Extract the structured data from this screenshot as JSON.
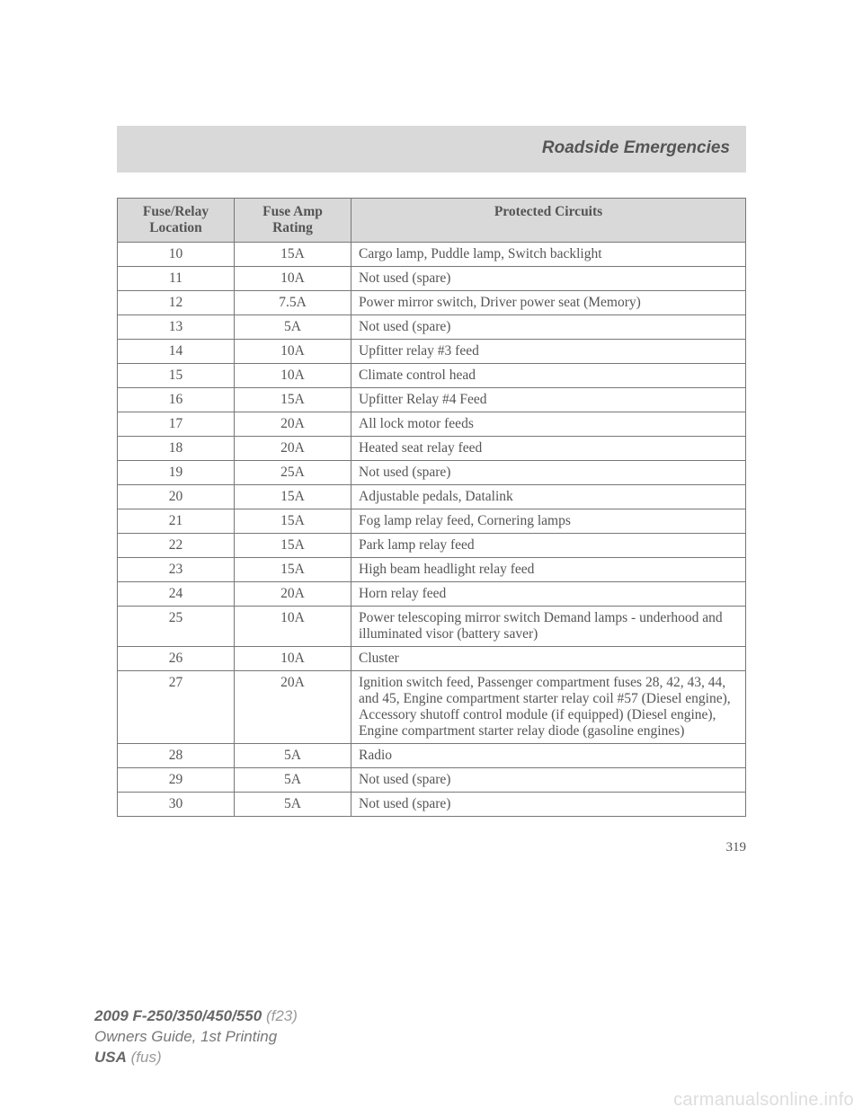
{
  "header": {
    "title": "Roadside Emergencies"
  },
  "table": {
    "columns": [
      "Fuse/Relay\nLocation",
      "Fuse Amp\nRating",
      "Protected Circuits"
    ],
    "rows": [
      [
        "10",
        "15A",
        "Cargo lamp, Puddle lamp, Switch backlight"
      ],
      [
        "11",
        "10A",
        "Not used (spare)"
      ],
      [
        "12",
        "7.5A",
        "Power mirror switch, Driver power seat (Memory)"
      ],
      [
        "13",
        "5A",
        "Not used (spare)"
      ],
      [
        "14",
        "10A",
        "Upfitter relay #3 feed"
      ],
      [
        "15",
        "10A",
        "Climate control head"
      ],
      [
        "16",
        "15A",
        "Upfitter Relay #4 Feed"
      ],
      [
        "17",
        "20A",
        "All lock motor feeds"
      ],
      [
        "18",
        "20A",
        "Heated seat relay feed"
      ],
      [
        "19",
        "25A",
        "Not used (spare)"
      ],
      [
        "20",
        "15A",
        "Adjustable pedals, Datalink"
      ],
      [
        "21",
        "15A",
        "Fog lamp relay feed, Cornering lamps"
      ],
      [
        "22",
        "15A",
        "Park lamp relay feed"
      ],
      [
        "23",
        "15A",
        "High beam headlight relay feed"
      ],
      [
        "24",
        "20A",
        "Horn relay feed"
      ],
      [
        "25",
        "10A",
        "Power telescoping mirror switch Demand lamps - underhood and illuminated visor (battery saver)"
      ],
      [
        "26",
        "10A",
        "Cluster"
      ],
      [
        "27",
        "20A",
        "Ignition switch feed, Passenger compartment fuses 28, 42, 43, 44, and 45, Engine compartment starter relay coil #57 (Diesel engine), Accessory shutoff control module (if equipped) (Diesel engine), Engine compartment starter relay diode (gasoline engines)"
      ],
      [
        "28",
        "5A",
        "Radio"
      ],
      [
        "29",
        "5A",
        "Not used (spare)"
      ],
      [
        "30",
        "5A",
        "Not used (spare)"
      ]
    ],
    "header_bg": "#d9d9d9",
    "border_color": "#777777",
    "text_color": "#555555",
    "font_size_pt": 11
  },
  "page": {
    "number": "319"
  },
  "footer": {
    "model": "2009 F-250/350/450/550",
    "model_code": "(f23)",
    "line2": "Owners Guide, 1st Printing",
    "line3a": "USA",
    "line3b": "(fus)"
  },
  "watermark": "carmanualsonline.info"
}
